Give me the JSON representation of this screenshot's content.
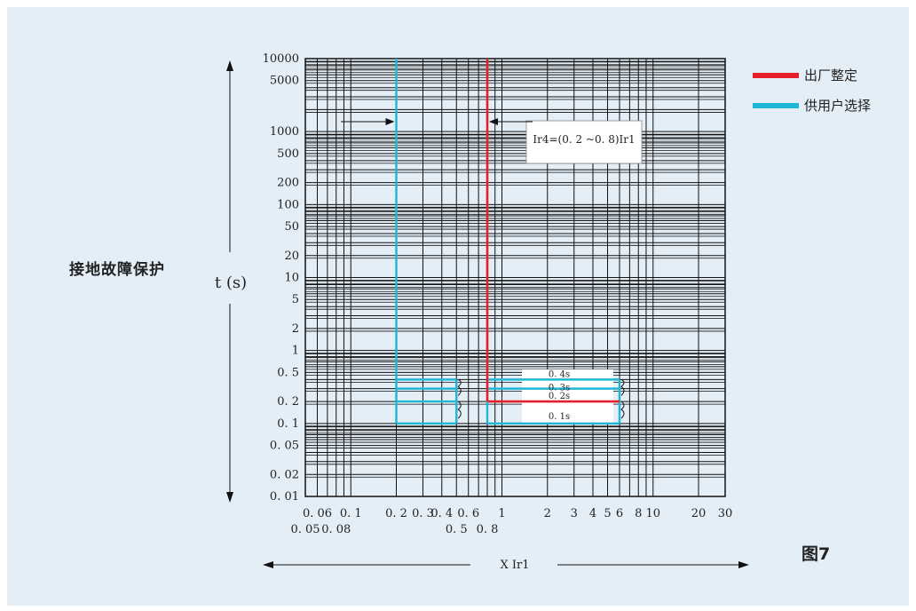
{
  "page": {
    "side_title": "接地故障保护",
    "figure_label": "图7"
  },
  "legend": [
    {
      "label": "出厂整定",
      "color": "#e3202a"
    },
    {
      "label": "供用户选择",
      "color": "#1fb6d6"
    }
  ],
  "colors": {
    "factory": "#e3202a",
    "user": "#1fb6d6",
    "grid": "#111111"
  },
  "chart_data": {
    "type": "line",
    "title": "",
    "xlabel": "X Ir1",
    "ylabel": "t (s)",
    "x_scale": "log",
    "y_scale": "log",
    "xlim": [
      0.05,
      30
    ],
    "ylim": [
      0.01,
      10000
    ],
    "x_ticks_row1": [
      "0.06",
      "0.1",
      "0.2",
      "0.3",
      "0.4",
      "0.6",
      "1",
      "2",
      "3",
      "4",
      "5",
      "6",
      "8",
      "10",
      "20",
      "30"
    ],
    "x_ticks_row2": [
      "0.05",
      "0.08",
      "0.5",
      "0.8"
    ],
    "y_ticks": [
      "10000",
      "5000",
      "1000",
      "500",
      "200",
      "100",
      "50",
      "20",
      "10",
      "5",
      "2",
      "1",
      "0.5",
      "0.2",
      "0.1",
      "0.05",
      "0.02",
      "0.01"
    ],
    "annotation": "Ir4=(0.2 ~0.8)Ir1",
    "time_labels": [
      "0.4s",
      "0.3s",
      "0.2s",
      "0.1s"
    ],
    "series": [
      {
        "name": "出厂整定",
        "color": "#e3202a",
        "points": [
          [
            0.8,
            10000
          ],
          [
            0.8,
            0.2
          ],
          [
            6,
            0.2
          ]
        ]
      },
      {
        "name": "供用户选择",
        "color": "#1fb6d6",
        "pickup": 0.2,
        "delays": [
          0.4,
          0.3,
          0.2,
          0.1
        ]
      },
      {
        "name": "供用户选择",
        "color": "#1fb6d6",
        "pickup": 0.8,
        "delays": [
          0.4,
          0.3,
          0.1
        ]
      }
    ]
  }
}
